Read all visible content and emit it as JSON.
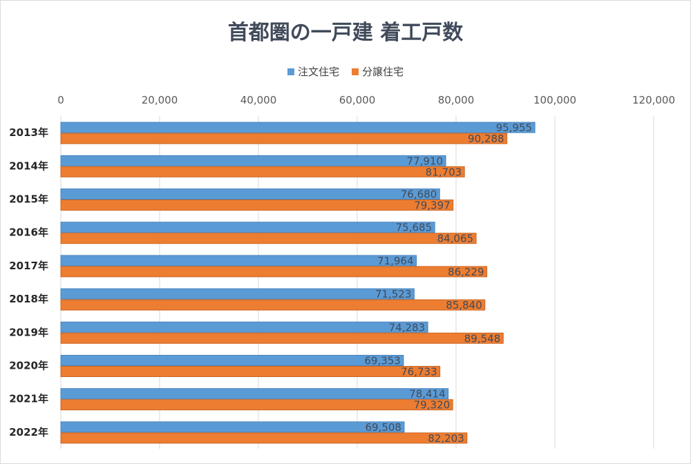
{
  "chart_data": {
    "type": "bar",
    "orientation": "horizontal",
    "title": "首都圏の一戸建 着工戸数",
    "categories": [
      "2013年",
      "2014年",
      "2015年",
      "2016年",
      "2017年",
      "2018年",
      "2019年",
      "2020年",
      "2021年",
      "2022年"
    ],
    "series": [
      {
        "name": "注文住宅",
        "color": "#5b9bd5",
        "values": [
          95955,
          77910,
          76680,
          75685,
          71964,
          71523,
          74283,
          69353,
          78414,
          69508
        ],
        "labels": [
          "95,955",
          "77,910",
          "76,680",
          "75,685",
          "71,964",
          "71,523",
          "74,283",
          "69,353",
          "78,414",
          "69,508"
        ]
      },
      {
        "name": "分譲住宅",
        "color": "#ed7d31",
        "values": [
          90288,
          81703,
          79397,
          84065,
          86229,
          85840,
          89548,
          76733,
          79320,
          82203
        ],
        "labels": [
          "90,288",
          "81,703",
          "79,397",
          "84,065",
          "86,229",
          "85,840",
          "89,548",
          "76,733",
          "79,320",
          "82,203"
        ]
      }
    ],
    "xlim": [
      0,
      120000
    ],
    "xticks": [
      0,
      20000,
      40000,
      60000,
      80000,
      100000,
      120000
    ],
    "xtick_labels": [
      "0",
      "20,000",
      "40,000",
      "60,000",
      "80,000",
      "100,000",
      "120,000"
    ],
    "grid": true,
    "legend_position": "top"
  }
}
